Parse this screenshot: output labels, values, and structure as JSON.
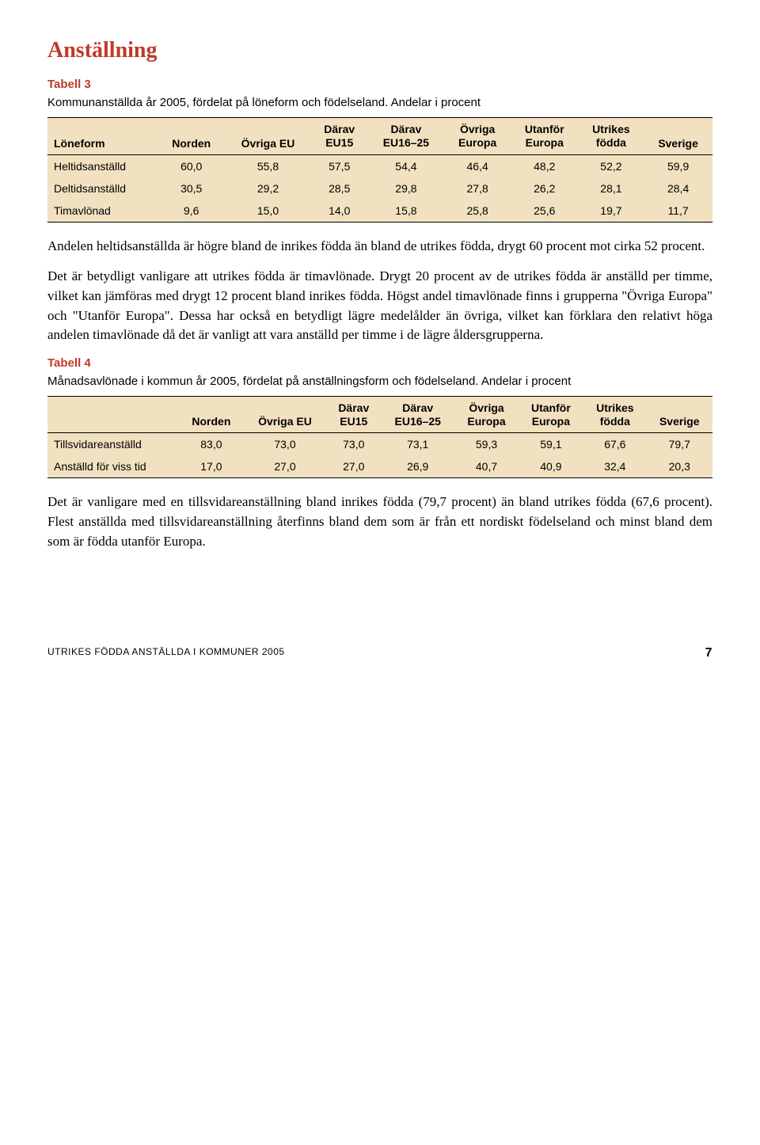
{
  "heading": "Anställning",
  "table3": {
    "label": "Tabell 3",
    "caption": "Kommunanställda år 2005, fördelat på löneform och födelseland. Andelar i procent",
    "columns": [
      "Löneform",
      "Norden",
      "Övriga EU",
      "Därav EU15",
      "Därav EU16–25",
      "Övriga Europa",
      "Utanför Europa",
      "Utrikes födda",
      "Sverige"
    ],
    "columns_l1": [
      "Löneform",
      "Norden",
      "Övriga EU",
      "Därav",
      "Därav",
      "Övriga",
      "Utanför",
      "Utrikes",
      "Sverige"
    ],
    "columns_l2": [
      "",
      "",
      "",
      "EU15",
      "EU16–25",
      "Europa",
      "Europa",
      "födda",
      ""
    ],
    "rows": [
      {
        "label": "Heltidsanställd",
        "v": [
          "60,0",
          "55,8",
          "57,5",
          "54,4",
          "46,4",
          "48,2",
          "52,2",
          "59,9"
        ]
      },
      {
        "label": "Deltidsanställd",
        "v": [
          "30,5",
          "29,2",
          "28,5",
          "29,8",
          "27,8",
          "26,2",
          "28,1",
          "28,4"
        ]
      },
      {
        "label": "Timavlönad",
        "v": [
          "9,6",
          "15,0",
          "14,0",
          "15,8",
          "25,8",
          "25,6",
          "19,7",
          "11,7"
        ]
      }
    ]
  },
  "para1": "Andelen heltidsanställda är högre bland de inrikes födda än bland de utrikes födda, drygt 60 procent mot cirka 52 procent.",
  "para2": "Det är betydligt vanligare att utrikes födda är timavlönade. Drygt 20 procent av de utrikes födda är anställd per timme, vilket kan jämföras med drygt 12 procent bland inrikes födda. Högst andel timavlönade finns i grupperna \"Övriga Europa\" och \"Utanför Europa\". Dessa har också en betydligt lägre medelålder än övriga, vilket kan förklara den relativt höga andelen timavlönade då det är vanligt att vara anställd per timme i de lägre åldersgrupperna.",
  "table4": {
    "label": "Tabell 4",
    "caption": "Månadsavlönade i kommun år 2005, fördelat på anställningsform och födelseland. Andelar i procent",
    "columns_l1": [
      "",
      "Norden",
      "Övriga EU",
      "Därav",
      "Därav",
      "Övriga",
      "Utanför",
      "Utrikes",
      "Sverige"
    ],
    "columns_l2": [
      "",
      "",
      "",
      "EU15",
      "EU16–25",
      "Europa",
      "Europa",
      "födda",
      ""
    ],
    "rows": [
      {
        "label": "Tillsvidareanställd",
        "v": [
          "83,0",
          "73,0",
          "73,0",
          "73,1",
          "59,3",
          "59,1",
          "67,6",
          "79,7"
        ]
      },
      {
        "label": "Anställd för viss tid",
        "v": [
          "17,0",
          "27,0",
          "27,0",
          "26,9",
          "40,7",
          "40,9",
          "32,4",
          "20,3"
        ]
      }
    ]
  },
  "para3": "Det är vanligare med en tillsvidareanställning bland inrikes födda (79,7 procent) än bland utrikes födda (67,6 procent). Flest anställda med tillsvidareanställning återfinns bland dem som är från ett nordiskt födelseland och minst bland dem som är födda utanför Europa.",
  "footer_left": "UTRIKES FÖDDA ANSTÄLLDA I KOMMUNER 2005",
  "footer_page": "7",
  "colors": {
    "heading": "#c0392b",
    "table_bg": "#f2e1c0",
    "border": "#000000"
  }
}
